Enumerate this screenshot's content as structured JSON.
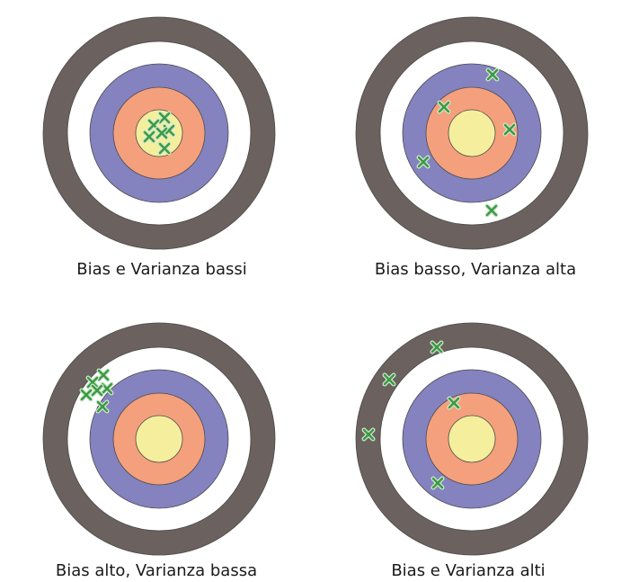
{
  "figure": {
    "colors": {
      "outer_ring": "#6b615e",
      "white_ring": "#ffffff",
      "purple_ring": "#8582c0",
      "orange_ring": "#f4a07d",
      "bullseye": "#f5ef9d",
      "mark": "#3f9a45",
      "mark_halo": "#cde9cf",
      "outline": "#4a4a4a"
    },
    "panels": [
      {
        "id": "low-bias-low-variance",
        "caption": "Bias e Varianza bassi",
        "bias": "low",
        "variance": "low",
        "mark_count": 6
      },
      {
        "id": "low-bias-high-variance",
        "caption": "Bias basso, Varianza alta",
        "bias": "low",
        "variance": "high",
        "mark_count": 5
      },
      {
        "id": "high-bias-low-variance",
        "caption": "Bias alto, Varianza bassa",
        "bias": "high",
        "variance": "low",
        "mark_count": 6
      },
      {
        "id": "high-bias-high-variance",
        "caption": "Bias e Varianza alti",
        "bias": "high",
        "variance": "high",
        "mark_count": 5
      }
    ]
  }
}
